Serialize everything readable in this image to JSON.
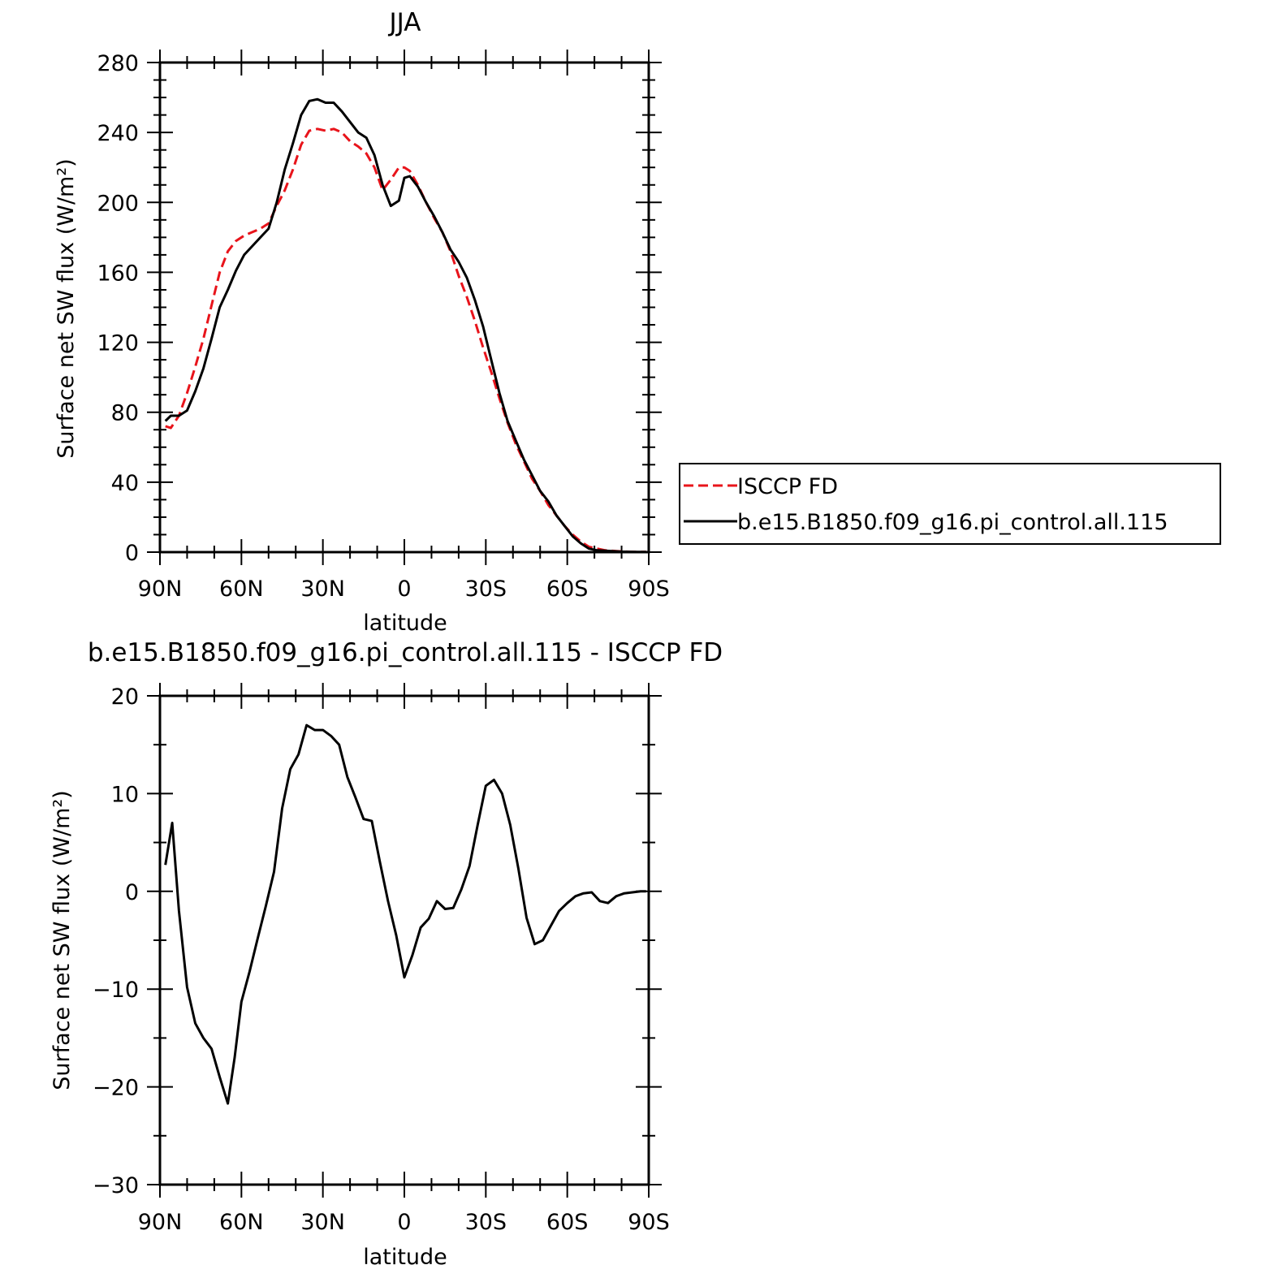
{
  "chart_data": [
    {
      "type": "line",
      "title": "JJA",
      "xlabel": "latitude",
      "ylabel": "Surface net SW flux (W/m²)",
      "xlim": [
        90,
        -90
      ],
      "ylim": [
        0,
        280
      ],
      "x_tick_values": [
        90,
        60,
        30,
        0,
        -30,
        -60,
        -90
      ],
      "x_tick_labels": [
        "90N",
        "60N",
        "30N",
        "0",
        "30S",
        "60S",
        "90S"
      ],
      "y_tick_values": [
        0,
        40,
        80,
        120,
        160,
        200,
        240,
        280
      ],
      "y_tick_labels": [
        "0",
        "40",
        "80",
        "120",
        "160",
        "200",
        "240",
        "280"
      ],
      "legend": "right",
      "grid": false,
      "series": [
        {
          "name": "ISCCP FD",
          "color": "#e8141b",
          "dash": true,
          "x": [
            88,
            86,
            83,
            80,
            77,
            74,
            71,
            68,
            65,
            62,
            59,
            56,
            53,
            50,
            47,
            44,
            41,
            38,
            35,
            32,
            29,
            26,
            23,
            20,
            17,
            14,
            11,
            8,
            5,
            2,
            0,
            -2,
            -5,
            -8,
            -11,
            -14,
            -17,
            -20,
            -23,
            -26,
            -29,
            -32,
            -35,
            -38,
            -41,
            -44,
            -47,
            -50,
            -53,
            -56,
            -59,
            -62,
            -65,
            -68,
            -71,
            -74,
            -77,
            -80,
            -83,
            -86,
            -89
          ],
          "y": [
            72,
            71,
            78,
            91,
            106,
            122,
            141,
            160,
            172,
            178,
            181,
            183,
            185,
            188,
            198,
            207,
            219,
            233,
            241,
            242,
            241,
            242,
            240,
            235,
            232,
            228,
            220,
            207,
            213,
            220,
            220,
            218,
            210,
            200,
            191,
            183,
            172,
            158,
            146,
            132,
            117,
            103,
            88,
            74,
            62,
            52,
            42,
            35,
            27,
            21,
            15,
            10,
            6,
            3,
            2,
            1,
            0.7,
            0.4,
            0.2,
            0.1,
            0.1
          ]
        },
        {
          "name": "b.e15.B1850.f09_g16.pi_control.all.115",
          "color": "#000000",
          "dash": false,
          "x": [
            88,
            86,
            83,
            80,
            77,
            74,
            71,
            68,
            65,
            62,
            59,
            56,
            53,
            50,
            47,
            44,
            41,
            38,
            35,
            32,
            29,
            26,
            23,
            20,
            17,
            14,
            11,
            8,
            5,
            2,
            0,
            -2,
            -5,
            -8,
            -11,
            -14,
            -17,
            -20,
            -23,
            -26,
            -29,
            -32,
            -35,
            -38,
            -41,
            -44,
            -47,
            -50,
            -53,
            -56,
            -59,
            -62,
            -65,
            -68,
            -71,
            -74,
            -77,
            -80,
            -83,
            -86,
            -89
          ],
          "y": [
            75,
            78,
            78,
            81,
            92,
            105,
            122,
            140,
            150,
            161,
            170,
            175,
            180,
            185,
            200,
            219,
            234,
            250,
            258,
            259,
            257,
            257,
            252,
            246,
            240,
            237,
            227,
            210,
            198,
            201,
            214,
            215,
            209,
            200,
            192,
            183,
            173,
            166,
            157,
            144,
            129,
            110,
            91,
            75,
            64,
            53,
            44,
            35,
            29,
            21,
            15,
            9,
            5,
            2,
            1,
            0.8,
            0.5,
            0.3,
            0.2,
            0.1,
            0.1
          ]
        }
      ]
    },
    {
      "type": "line",
      "title": "b.e15.B1850.f09_g16.pi_control.all.115 - ISCCP FD",
      "xlabel": "latitude",
      "ylabel": "Surface net SW flux (W/m²)",
      "xlim": [
        90,
        -90
      ],
      "ylim": [
        -30,
        20
      ],
      "x_tick_values": [
        90,
        60,
        30,
        0,
        -30,
        -60,
        -90
      ],
      "x_tick_labels": [
        "90N",
        "60N",
        "30N",
        "0",
        "30S",
        "60S",
        "90S"
      ],
      "y_tick_values": [
        -30,
        -20,
        -10,
        0,
        10,
        20
      ],
      "y_tick_labels": [
        "−30",
        "−20",
        "−10",
        "0",
        "10",
        "20"
      ],
      "grid": false,
      "series": [
        {
          "color": "#000000",
          "dash": false,
          "x": [
            88,
            85.5,
            83,
            80,
            77,
            74,
            71,
            68,
            65,
            62.5,
            60,
            57,
            54,
            51,
            48,
            45,
            42,
            39,
            36,
            33,
            30,
            27,
            24,
            21,
            18,
            15,
            12,
            9,
            6,
            3,
            0,
            -3,
            -6,
            -9,
            -12,
            -15,
            -18,
            -21,
            -24,
            -27,
            -30,
            -33,
            -36,
            -39,
            -42,
            -45,
            -48,
            -51,
            -54,
            -57,
            -60,
            -63,
            -66,
            -69,
            -72,
            -75,
            -78,
            -81,
            -84,
            -87,
            -89
          ],
          "y": [
            2.7,
            7.0,
            -2.0,
            -9.8,
            -13.5,
            -15.0,
            -16.1,
            -19.0,
            -21.7,
            -17.0,
            -11.3,
            -8.2,
            -4.8,
            -1.5,
            2.0,
            8.5,
            12.5,
            14.0,
            17.0,
            16.5,
            16.5,
            15.9,
            15.0,
            11.7,
            9.6,
            7.4,
            7.2,
            3.0,
            -1.0,
            -4.5,
            -8.8,
            -6.5,
            -3.7,
            -2.8,
            -1.0,
            -1.8,
            -1.7,
            0.2,
            2.6,
            6.8,
            10.8,
            11.4,
            10.0,
            6.8,
            2.3,
            -2.7,
            -5.4,
            -5.0,
            -3.5,
            -2.0,
            -1.2,
            -0.5,
            -0.2,
            -0.1,
            -1.0,
            -1.2,
            -0.5,
            -0.2,
            -0.1,
            0.0,
            0.0
          ]
        }
      ]
    }
  ]
}
